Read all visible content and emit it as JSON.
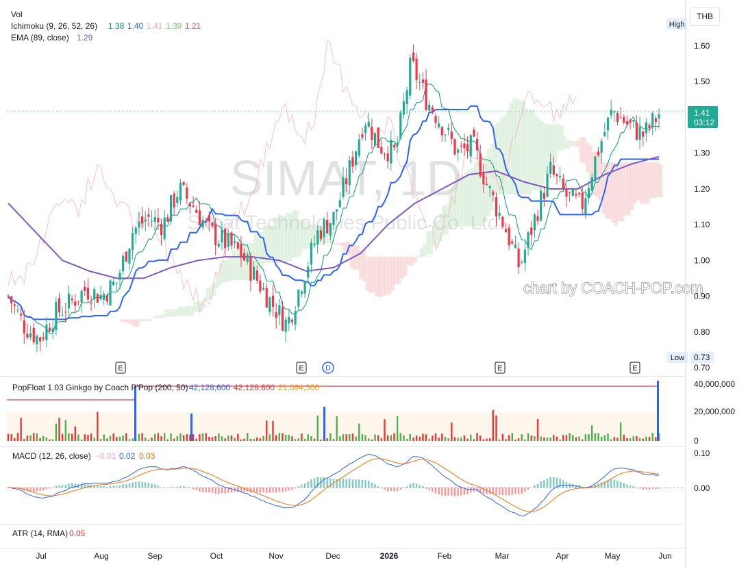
{
  "currency": "THB",
  "watermark": {
    "symbol": "SIMAT, 1D",
    "company": "Simat Technologies Public Co. Ltd.",
    "credit": "chart by COACH-POP.com"
  },
  "legend": {
    "vol": "Vol",
    "ichimoku": {
      "label": "Ichimoku (9, 26, 52, 26)",
      "values": [
        "1.38",
        "1.40",
        "1.41",
        "1.39",
        "1.21"
      ]
    },
    "ema": {
      "label": "EMA (89, close)",
      "value": "1.29"
    }
  },
  "price_scale": {
    "ticks": [
      "1.60",
      "1.50",
      "1.40",
      "1.30",
      "1.20",
      "1.10",
      "1.00",
      "0.90",
      "0.80",
      "0.70"
    ],
    "high_label": "High",
    "low_label": "Low",
    "low_value": "0.73",
    "last_price": "1.41",
    "countdown": "03:12"
  },
  "events": [
    "E",
    "E",
    "D",
    "E",
    "E"
  ],
  "popfloat": {
    "label": "PopFloat 1.03 Ginkgo by Coach P'Pop (200, 50)",
    "values": [
      "42,128,600",
      "42,128,600",
      "21,064,300"
    ],
    "ticks": [
      "40,000,000",
      "20,000,000",
      "0"
    ]
  },
  "macd": {
    "label": "MACD (12, 26, close)",
    "values": [
      "−0.01",
      "0.02",
      "0.03"
    ],
    "ticks": [
      "0.10",
      "0.00"
    ]
  },
  "atr": {
    "label": "ATR (14, RMA)",
    "value": "0.05"
  },
  "time_axis": [
    "Jul",
    "Aug",
    "Sep",
    "Oct",
    "Nov",
    "Dec",
    "2026",
    "Feb",
    "Mar",
    "Apr",
    "May",
    "Jun"
  ],
  "colors": {
    "up": "#22ab94",
    "down": "#f23645",
    "tenkan": "#089981",
    "kijun": "#2962ff",
    "ema": "#7e57c2",
    "cloud_bull": "#a5d6a7",
    "cloud_bear": "#ef9a9a",
    "macd_line": "#2962ff",
    "signal_line": "#ff6d00",
    "vol_up": "#4caf50",
    "vol_down": "#e53935"
  },
  "chart_data": {
    "type": "candlestick",
    "ylim": [
      0.7,
      1.65
    ],
    "x": [
      "Jul",
      "Aug",
      "Sep",
      "Oct",
      "Nov",
      "Dec",
      "2026",
      "Feb",
      "Mar",
      "Apr",
      "May",
      "Jun"
    ],
    "close_path": [
      0.9,
      0.82,
      0.78,
      0.85,
      0.88,
      0.92,
      0.9,
      0.94,
      1.08,
      1.12,
      1.1,
      1.2,
      1.15,
      1.08,
      1.05,
      1.02,
      0.95,
      0.88,
      0.82,
      0.95,
      1.08,
      1.12,
      1.25,
      1.4,
      1.32,
      1.3,
      1.55,
      1.45,
      1.38,
      1.3,
      1.32,
      1.2,
      1.1,
      0.98,
      1.12,
      1.25,
      1.18,
      1.15,
      1.3,
      1.42,
      1.38,
      1.35,
      1.41
    ],
    "ema89": [
      1.16,
      1.08,
      1.0,
      0.97,
      0.95,
      0.95,
      0.98,
      1.0,
      1.01,
      1.01,
      1.0,
      0.97,
      0.98,
      1.02,
      1.1,
      1.16,
      1.2,
      1.24,
      1.25,
      1.22,
      1.2,
      1.2,
      1.24,
      1.27,
      1.29
    ],
    "macd_ticks": [
      0.1,
      0.0
    ]
  }
}
